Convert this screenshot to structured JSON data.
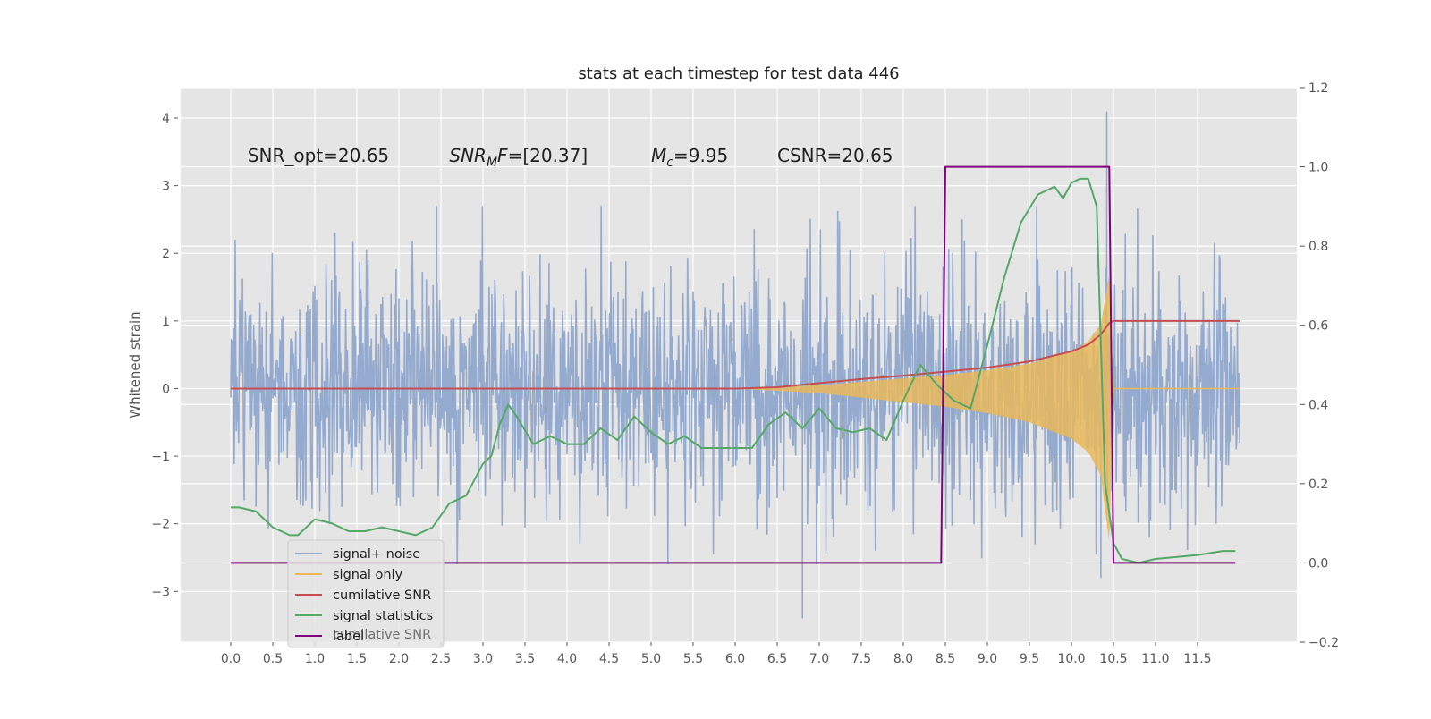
{
  "chart_data": {
    "type": "line",
    "title": "stats at each timestep for test data 446",
    "ylabel": "Whitened strain",
    "y2label": "",
    "xlim": [
      -0.55,
      12.45
    ],
    "ylim": [
      -3.75,
      4.45
    ],
    "y2lim": [
      -0.2,
      1.2
    ],
    "grid": true,
    "x_ticks": [
      "0.0",
      "0.5",
      "1.0",
      "1.5",
      "2.0",
      "2.5",
      "3.0",
      "3.5",
      "4.0",
      "4.5",
      "5.0",
      "5.5",
      "6.0",
      "6.5",
      "7.0",
      "7.5",
      "8.0",
      "8.5",
      "9.0",
      "9.5",
      "10.0",
      "10.5",
      "11.0",
      "11.5"
    ],
    "y_ticks": [
      {
        "value": 4,
        "label": "4"
      },
      {
        "value": 3,
        "label": "3"
      },
      {
        "value": 2,
        "label": "2"
      },
      {
        "value": 1,
        "label": "1"
      },
      {
        "value": 0,
        "label": "0"
      },
      {
        "value": -1,
        "label": "−1"
      },
      {
        "value": -2,
        "label": "−2"
      },
      {
        "value": -3,
        "label": "−3"
      }
    ],
    "y2_ticks": [
      {
        "value": 1.2,
        "label": "1.2"
      },
      {
        "value": 1.0,
        "label": "1.0"
      },
      {
        "value": 0.8,
        "label": "0.8"
      },
      {
        "value": 0.6,
        "label": "0.6"
      },
      {
        "value": 0.4,
        "label": "0.4"
      },
      {
        "value": 0.2,
        "label": "0.2"
      },
      {
        "value": 0.0,
        "label": "0.0"
      },
      {
        "value": -0.2,
        "label": "−0.2"
      }
    ],
    "annotations": [
      {
        "text": "SNR_opt=20.65",
        "x": 0.2,
        "y": 3.35
      },
      {
        "text": "SNR_MF=[20.37]",
        "x": 2.6,
        "y": 3.35
      },
      {
        "text": "M_c=9.95",
        "x": 5.0,
        "y": 3.35
      },
      {
        "text": "CSNR=20.65",
        "x": 6.5,
        "y": 3.35
      }
    ],
    "series": [
      {
        "name": "signal+ noise",
        "color": "#8fa7cc",
        "axis": "left",
        "x_range": [
          0.0,
          12.0
        ],
        "values_description_free": true,
        "envelope": {
          "x": [
            0,
            12
          ],
          "min": -2.6,
          "max": 2.7
        },
        "peaks": [
          {
            "x": 6.8,
            "y": -3.4
          },
          {
            "x": 10.42,
            "y": 4.1
          },
          {
            "x": 2.45,
            "y": 2.7
          },
          {
            "x": 8.7,
            "y": 2.5
          },
          {
            "x": 10.35,
            "y": -2.8
          }
        ]
      },
      {
        "name": "signal only",
        "color": "#e8b85a",
        "axis": "left",
        "x": [
          6.0,
          7.0,
          8.0,
          8.5,
          9.0,
          9.5,
          10.0,
          10.2,
          10.35,
          10.45,
          10.5
        ],
        "amplitude": [
          0.0,
          0.05,
          0.15,
          0.2,
          0.27,
          0.37,
          0.55,
          0.7,
          0.95,
          1.7,
          0.0
        ]
      },
      {
        "name": "cumilative SNR",
        "color": "#c44e52",
        "axis": "left",
        "x": [
          0.0,
          6.0,
          6.5,
          7.0,
          7.5,
          8.0,
          8.5,
          9.0,
          9.5,
          10.0,
          10.2,
          10.35,
          10.45,
          10.5,
          12.0
        ],
        "values": [
          0.0,
          0.0,
          0.02,
          0.08,
          0.14,
          0.19,
          0.25,
          0.31,
          0.4,
          0.55,
          0.65,
          0.8,
          0.97,
          1.0,
          1.0
        ]
      },
      {
        "name": "signal statistics",
        "color": "#55a868",
        "axis": "right",
        "x": [
          0.0,
          0.1,
          0.3,
          0.5,
          0.7,
          0.8,
          1.0,
          1.2,
          1.4,
          1.6,
          1.8,
          2.0,
          2.2,
          2.4,
          2.6,
          2.8,
          3.0,
          3.1,
          3.2,
          3.3,
          3.4,
          3.6,
          3.8,
          4.0,
          4.2,
          4.4,
          4.6,
          4.8,
          5.0,
          5.2,
          5.4,
          5.6,
          5.8,
          6.0,
          6.2,
          6.4,
          6.6,
          6.8,
          7.0,
          7.2,
          7.4,
          7.6,
          7.8,
          8.0,
          8.2,
          8.4,
          8.6,
          8.8,
          9.0,
          9.2,
          9.4,
          9.6,
          9.8,
          9.9,
          10.0,
          10.1,
          10.2,
          10.3,
          10.4,
          10.5,
          10.6,
          10.8,
          11.0,
          11.5,
          11.8,
          11.95
        ],
        "values": [
          0.14,
          0.14,
          0.13,
          0.09,
          0.07,
          0.07,
          0.11,
          0.1,
          0.08,
          0.08,
          0.09,
          0.08,
          0.07,
          0.09,
          0.15,
          0.17,
          0.25,
          0.27,
          0.35,
          0.4,
          0.37,
          0.3,
          0.32,
          0.3,
          0.3,
          0.34,
          0.31,
          0.37,
          0.33,
          0.3,
          0.32,
          0.29,
          0.29,
          0.29,
          0.29,
          0.35,
          0.38,
          0.34,
          0.39,
          0.34,
          0.33,
          0.34,
          0.31,
          0.41,
          0.5,
          0.45,
          0.41,
          0.39,
          0.55,
          0.72,
          0.86,
          0.93,
          0.95,
          0.92,
          0.96,
          0.97,
          0.97,
          0.9,
          0.2,
          0.05,
          0.01,
          0.0,
          0.01,
          0.02,
          0.03,
          0.03
        ]
      },
      {
        "name": "label",
        "color": "#800080",
        "axis": "right",
        "x": [
          0.0,
          8.45,
          8.5,
          10.45,
          10.5,
          11.95
        ],
        "values": [
          0.0,
          0.0,
          1.0,
          1.0,
          0.0,
          0.0
        ]
      }
    ],
    "legend": {
      "placement": "lower-left",
      "entries": [
        "signal+ noise",
        "signal only",
        "cumilative SNR",
        "signal statistics",
        "label"
      ],
      "ghost_text": "cumilative SNR"
    }
  }
}
